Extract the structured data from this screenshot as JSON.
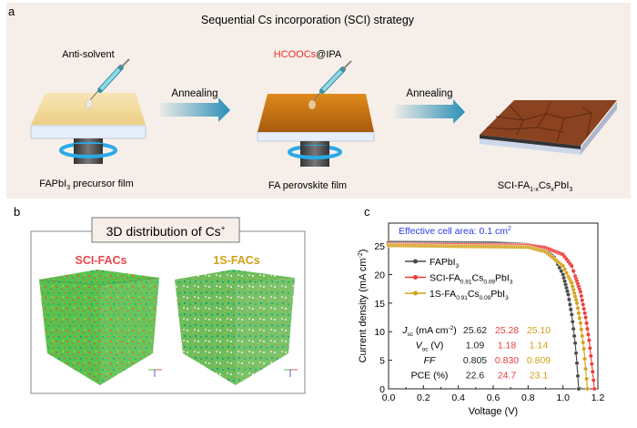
{
  "panel_a": {
    "label": "a",
    "title": "Sequential Cs incorporation (SCI) strategy",
    "step1_reagent": "Anti-solvent",
    "step2_reagent_highlight": "HCOOCs",
    "step2_reagent_rest": "@IPA",
    "arrow1_label": "Annealing",
    "arrow2_label": "Annealing",
    "film1_label_main": "FAPbI",
    "film1_label_sub": "3",
    "film1_label_rest": " precursor film",
    "film2_label": "FA perovskite film",
    "film3_label": {
      "p1": "SCI-FA",
      "s1": "1-x",
      "p2": "Cs",
      "s2": "x",
      "p3": "PbI",
      "s3": "3"
    },
    "colors": {
      "background": "#f6efe9",
      "highlight": "#ee2a2a",
      "arrow": "#2a8fb8",
      "film1": "#f3dc9c",
      "film2": "#c9700f",
      "film3": "#8a4220"
    }
  },
  "panel_b": {
    "label": "b",
    "title": "3D distribution of Cs",
    "title_sup": "+",
    "left_label": "SCI-FACs",
    "right_label": "1S-FACs",
    "colors": {
      "left_label": "#e8474b",
      "right_label": "#d4a017",
      "cube": "#4cc04c"
    }
  },
  "panel_c": {
    "label": "c",
    "annotation": "Effective cell area: 0.1 cm",
    "annotation_sup": "2",
    "annotation_color": "#2a3cf0",
    "table": {
      "rows": [
        {
          "label": "J",
          "sub": "sc",
          "unit": " (mA cm",
          "unit_sup": "-2",
          "unit_end": ")",
          "values": [
            "25.62",
            "25.28",
            "25.10"
          ]
        },
        {
          "label": "V",
          "sub": "oc",
          "unit": " (V)",
          "unit_sup": "",
          "unit_end": "",
          "values": [
            "1.09",
            "1.18",
            "1.14"
          ]
        },
        {
          "label": "FF",
          "sub": "",
          "unit": "",
          "unit_sup": "",
          "unit_end": "",
          "values": [
            "0.805",
            "0.830",
            "0.809"
          ]
        },
        {
          "label": "PCE (%)",
          "sub": "",
          "unit": "",
          "unit_sup": "",
          "unit_end": "",
          "values": [
            "22.6",
            "24.7",
            "23.1"
          ]
        }
      ]
    }
  },
  "chart_data": {
    "type": "line",
    "xlabel": "Voltage (V)",
    "ylabel": "Current density (mA cm",
    "ylabel_sup": "-2",
    "ylabel_end": ")",
    "xlim": [
      0,
      1.2
    ],
    "ylim": [
      0,
      29
    ],
    "xticks": [
      "0.0",
      "0.2",
      "0.4",
      "0.6",
      "0.8",
      "1.0",
      "1.2"
    ],
    "yticks": [
      "0",
      "5",
      "10",
      "15",
      "20",
      "25"
    ],
    "grid": false,
    "legend_placement": "top-left",
    "series": [
      {
        "name": "FAPbI3",
        "legend": {
          "p1": "FAPbI",
          "s1": "3",
          "p2": "",
          "s2": "",
          "p3": "",
          "s3": ""
        },
        "color": "#4a4a4a",
        "points": [
          [
            0,
            25.6
          ],
          [
            0.6,
            25.5
          ],
          [
            0.8,
            25.2
          ],
          [
            0.9,
            24.3
          ],
          [
            0.95,
            23
          ],
          [
            1.0,
            20
          ],
          [
            1.03,
            16.5
          ],
          [
            1.05,
            13
          ],
          [
            1.07,
            8
          ],
          [
            1.08,
            4.5
          ],
          [
            1.09,
            0
          ]
        ]
      },
      {
        "name": "SCI-FA0.91Cs0.09PbI3",
        "legend": {
          "p1": "SCI-FA",
          "s1": "0.91",
          "p2": "Cs",
          "s2": "0.09",
          "p3": "PbI",
          "s3": "3"
        },
        "color": "#ee3b3b",
        "points": [
          [
            0,
            25.3
          ],
          [
            0.8,
            25.1
          ],
          [
            0.9,
            24.7
          ],
          [
            1.0,
            23.5
          ],
          [
            1.05,
            21.5
          ],
          [
            1.1,
            17
          ],
          [
            1.13,
            12.5
          ],
          [
            1.15,
            8.5
          ],
          [
            1.17,
            3
          ],
          [
            1.18,
            0
          ]
        ]
      },
      {
        "name": "1S-FA0.91Cs0.09PbI3",
        "legend": {
          "p1": "1S-FA",
          "s1": "0.91",
          "p2": "Cs",
          "s2": "0.09",
          "p3": "PbI",
          "s3": "3"
        },
        "color": "#d4a017",
        "points": [
          [
            0,
            25.1
          ],
          [
            0.8,
            24.8
          ],
          [
            0.9,
            24
          ],
          [
            1.0,
            21.5
          ],
          [
            1.05,
            18.5
          ],
          [
            1.08,
            15
          ],
          [
            1.1,
            11.5
          ],
          [
            1.12,
            7
          ],
          [
            1.13,
            3.5
          ],
          [
            1.14,
            0
          ]
        ]
      }
    ]
  }
}
